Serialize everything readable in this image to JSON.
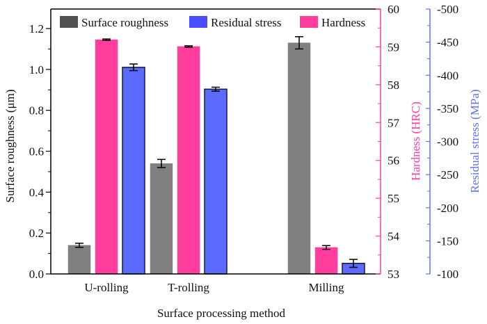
{
  "chart_data": {
    "type": "bar",
    "title": "",
    "xlabel": "Surface processing method",
    "categories": [
      "U-rolling",
      "T-rolling",
      "Milling"
    ],
    "series": [
      {
        "name": "Surface roughness",
        "axis": "left",
        "color": "#808080",
        "values": [
          0.14,
          0.54,
          1.13
        ],
        "errors": [
          0.01,
          0.02,
          0.03
        ]
      },
      {
        "name": "Hardness",
        "axis": "right1",
        "color": "#FF3E9E",
        "values": [
          59.19,
          59.01,
          53.7
        ],
        "errors": [
          0.01,
          0.01,
          0.05
        ]
      },
      {
        "name": "Residual stress",
        "axis": "right2",
        "color": "#5B6BFF",
        "values": [
          -412,
          -379,
          -116
        ],
        "errors": [
          5,
          3,
          6
        ]
      }
    ],
    "bar_order": [
      "Surface roughness",
      "Hardness",
      "Residual stress"
    ],
    "legend_order": [
      "Surface roughness",
      "Residual stress",
      "Hardness"
    ],
    "legend_position": "top-left, inside",
    "axes": {
      "left": {
        "label": "Surface roughness (μm)",
        "ylim": [
          0,
          1.28
        ],
        "ticks": [
          "0.0",
          "0.2",
          "0.4",
          "0.6",
          "0.8",
          "1.0",
          "1.2"
        ],
        "tick_values": [
          0,
          0.2,
          0.4,
          0.6,
          0.8,
          1.0,
          1.2
        ],
        "color": "#000000"
      },
      "right1": {
        "label": "Hardness (HRC)",
        "ylim": [
          53,
          60
        ],
        "ticks": [
          "53",
          "54",
          "55",
          "56",
          "57",
          "58",
          "59",
          "60"
        ],
        "tick_values": [
          53,
          54,
          55,
          56,
          57,
          58,
          59,
          60
        ],
        "color": "#FF3E9E"
      },
      "right2": {
        "label": "Residual stress (MPa)",
        "ylim": [
          -100,
          -500
        ],
        "ticks": [
          "-100",
          "-150",
          "-200",
          "-250",
          "-300",
          "-350",
          "-400",
          "-450",
          "-500"
        ],
        "tick_values": [
          -100,
          -150,
          -200,
          -250,
          -300,
          -350,
          -400,
          -450,
          -500
        ],
        "color": "#6070FF"
      }
    },
    "grid": false
  }
}
